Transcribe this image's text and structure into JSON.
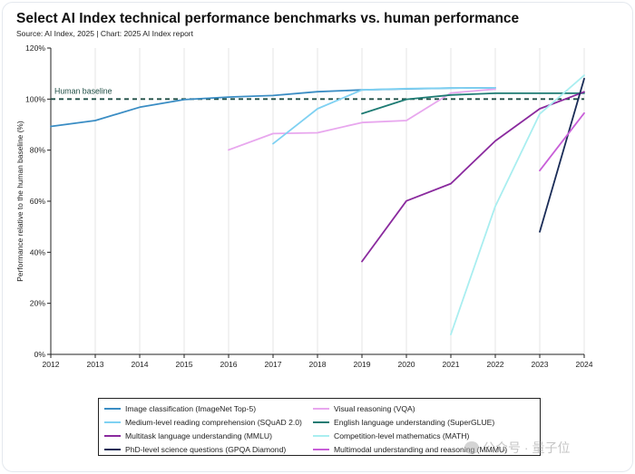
{
  "title": "Select AI Index technical performance benchmarks vs. human performance",
  "subtitle": "Source: AI Index, 2025 | Chart: 2025 AI Index report",
  "watermark": "公众号 · 量子位",
  "chart_data": {
    "type": "line",
    "ylabel": "Performance relative to the human baseline (%)",
    "xlabel": "",
    "xlim": [
      2012,
      2024
    ],
    "ylim": [
      0,
      120
    ],
    "x_ticks": [
      2012,
      2013,
      2014,
      2015,
      2016,
      2017,
      2018,
      2019,
      2020,
      2021,
      2022,
      2023,
      2024
    ],
    "y_ticks": [
      0,
      20,
      40,
      60,
      80,
      100,
      120
    ],
    "y_tick_labels": [
      "0%",
      "20%",
      "40%",
      "60%",
      "80%",
      "100%",
      "120%"
    ],
    "grid": "vertical",
    "baseline": {
      "value": 100,
      "label": "Human baseline",
      "color": "#1f4e45"
    },
    "legend_position": "bottom",
    "series": [
      {
        "name": "Image classification (ImageNet Top-5)",
        "color": "#3a8dc4",
        "x": [
          2012,
          2013,
          2014,
          2015,
          2016,
          2017,
          2018,
          2019,
          2020,
          2021,
          2022
        ],
        "y": [
          89.3,
          91.6,
          96.8,
          99.8,
          100.8,
          101.4,
          102.9,
          103.6,
          104.0,
          104.3,
          104.4
        ]
      },
      {
        "name": "Visual reasoning (VQA)",
        "color": "#e8a7ee",
        "x": [
          2016,
          2017,
          2018,
          2019,
          2020,
          2021,
          2022
        ],
        "y": [
          80.1,
          86.5,
          86.8,
          90.8,
          91.6,
          102.4,
          103.9
        ]
      },
      {
        "name": "Medium-level reading comprehension (SQuAD 2.0)",
        "color": "#7fd1f2",
        "x": [
          2017,
          2018,
          2019,
          2020,
          2021,
          2022
        ],
        "y": [
          82.5,
          96.2,
          103.6,
          104.1,
          104.3,
          104.4
        ]
      },
      {
        "name": "English language understanding (SuperGLUE)",
        "color": "#1e7b73",
        "x": [
          2019,
          2020,
          2021,
          2022,
          2023,
          2024
        ],
        "y": [
          94.3,
          99.9,
          101.6,
          102.3,
          102.3,
          102.3
        ]
      },
      {
        "name": "Multitask language understanding (MMLU)",
        "color": "#8a2a9e",
        "x": [
          2019,
          2020,
          2021,
          2022,
          2023,
          2024
        ],
        "y": [
          36.4,
          60.1,
          66.9,
          83.6,
          96.2,
          102.8
        ]
      },
      {
        "name": "Competition-level mathematics (MATH)",
        "color": "#a9eef0",
        "x": [
          2021,
          2022,
          2023,
          2024
        ],
        "y": [
          7.8,
          58.0,
          94.2,
          109.3
        ]
      },
      {
        "name": "PhD-level science questions (GPQA Diamond)",
        "color": "#1a2c57",
        "x": [
          2023,
          2024
        ],
        "y": [
          48.0,
          108.0
        ]
      },
      {
        "name": "Multimodal understanding and reasoning (MMMU)",
        "color": "#c85fd8",
        "x": [
          2023,
          2024
        ],
        "y": [
          72.0,
          94.5
        ]
      }
    ],
    "legend_order": [
      0,
      1,
      2,
      3,
      4,
      5,
      6,
      7
    ]
  }
}
